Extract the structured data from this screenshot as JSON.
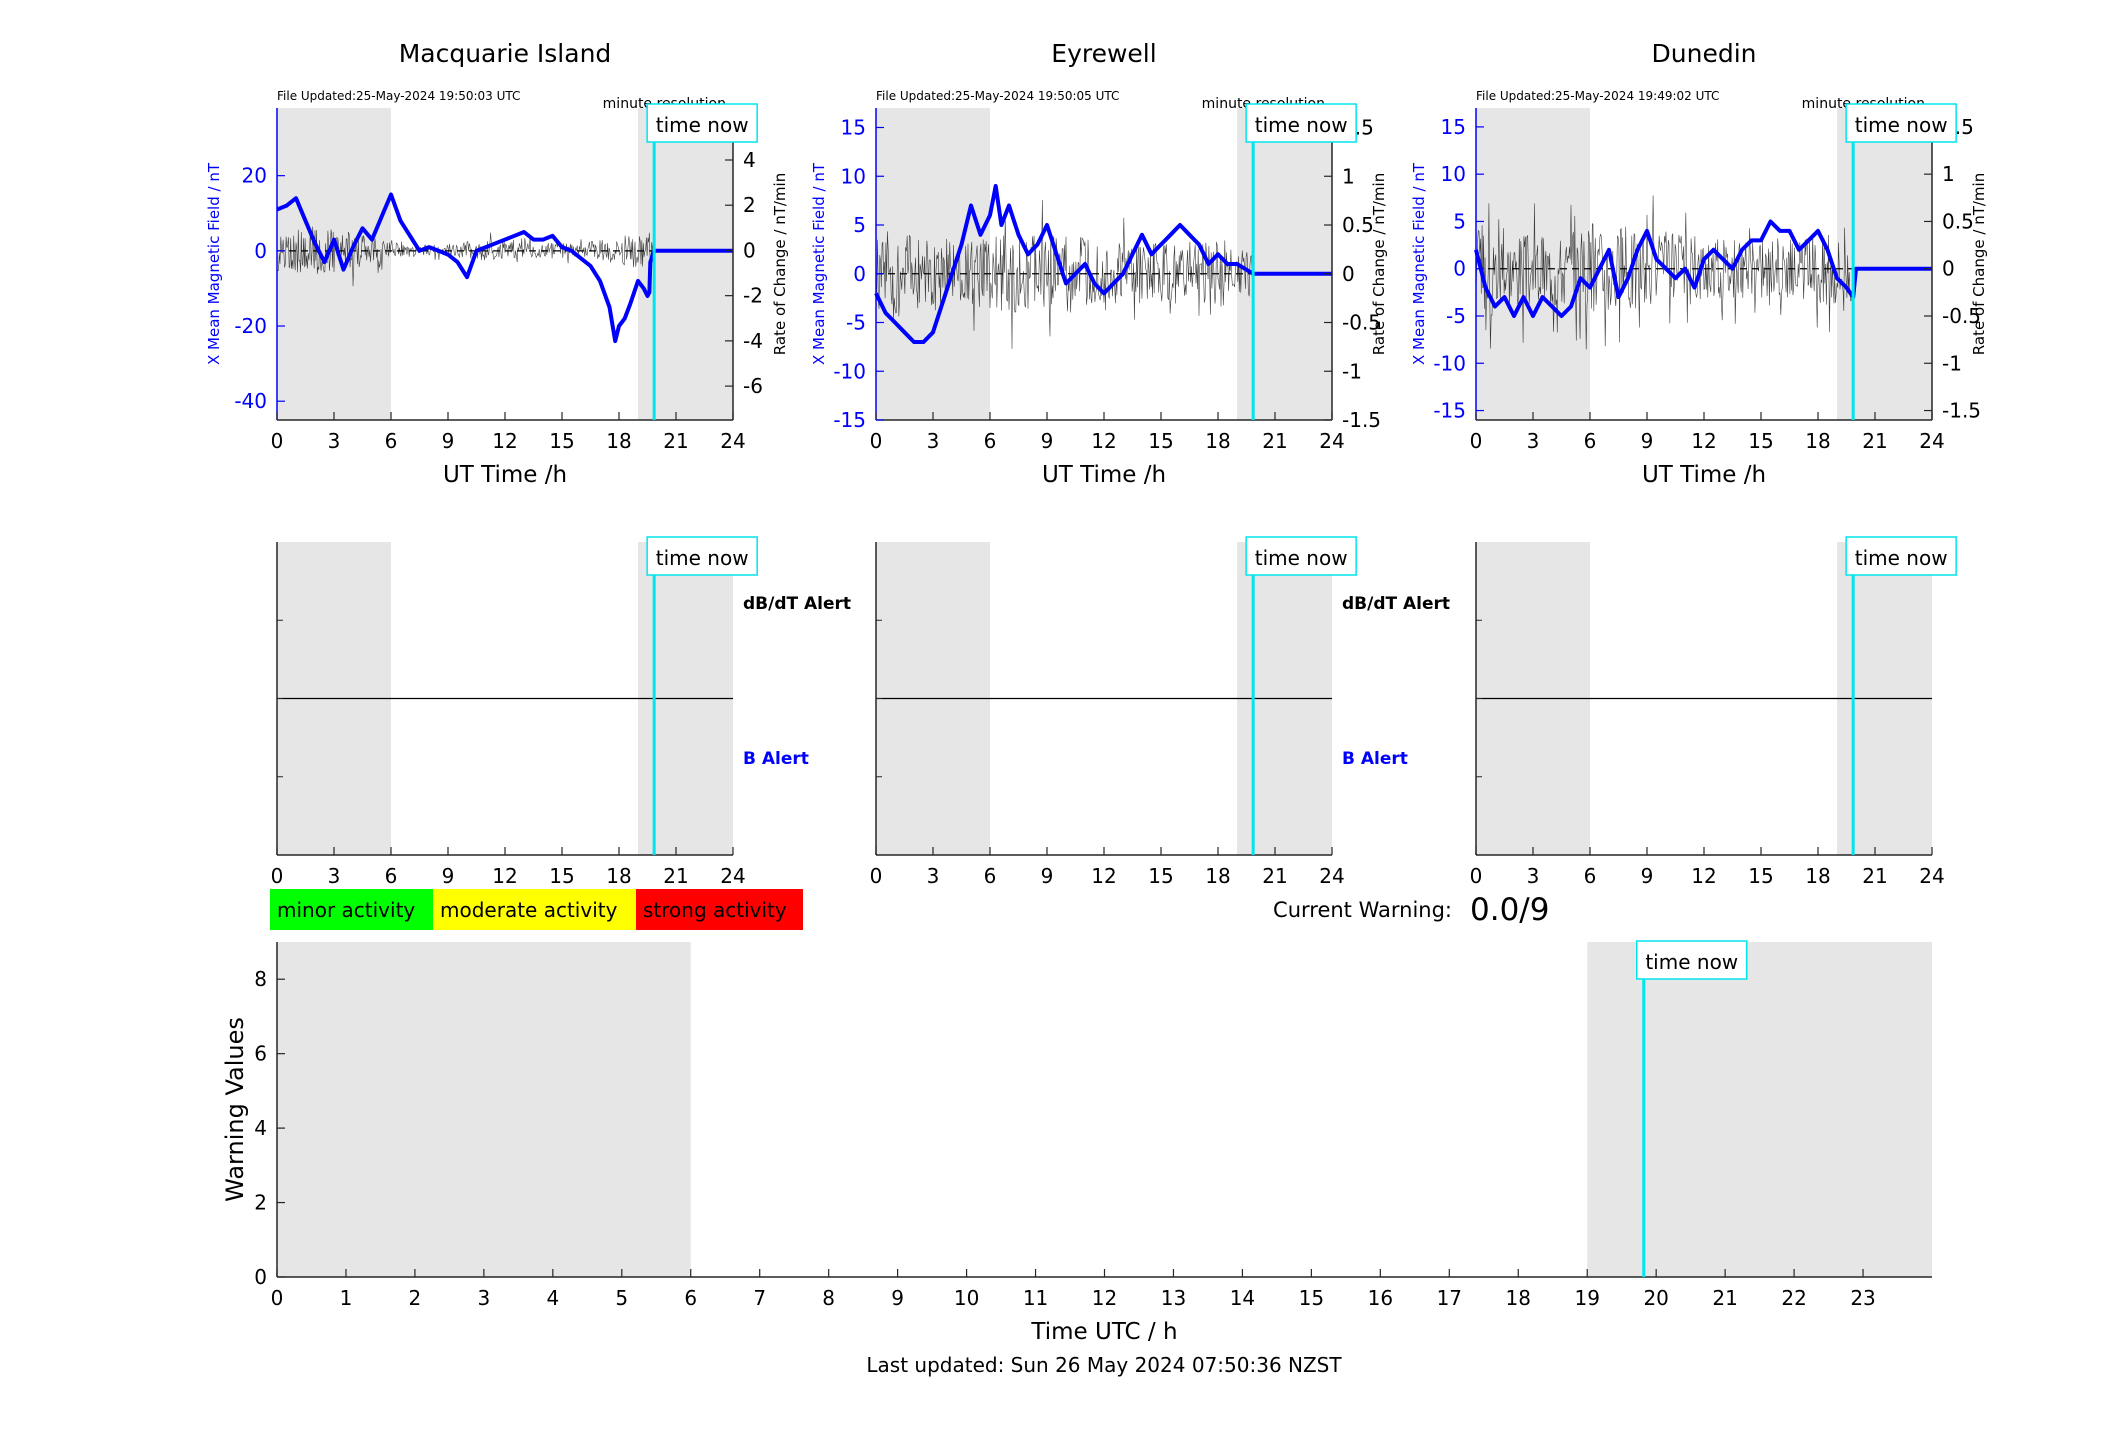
{
  "chart_data": [
    {
      "type": "line",
      "station": "Macquarie Island",
      "file_updated": "File Updated:25-May-2024 19:50:03 UTC",
      "resolution_label": "minute resolution",
      "time_now_label": "time now",
      "time_now_h": 19.85,
      "night_bands_h": [
        [
          0,
          6
        ],
        [
          19,
          24
        ]
      ],
      "xlabel": "UT Time /h",
      "xlim": [
        0,
        24
      ],
      "xticks": [
        0,
        3,
        6,
        9,
        12,
        15,
        18,
        21,
        24
      ],
      "ylabel_left": "X Mean Magnetic Field / nT",
      "ylim_left": [
        -45,
        38
      ],
      "yticks_left": [
        -40,
        -20,
        0,
        20
      ],
      "ylabel_right": "Rate of Change / nT/min",
      "ylim_right": [
        -7.5,
        6.3
      ],
      "yticks_right": [
        -6,
        -4,
        -2,
        0,
        2,
        4,
        6
      ],
      "series": [
        {
          "name": "X Mean Magnetic Field",
          "axis": "left",
          "x": [
            0,
            0.5,
            1,
            1.5,
            2,
            2.5,
            3,
            3.5,
            4,
            4.5,
            5,
            5.5,
            6,
            6.5,
            7,
            7.5,
            8,
            8.5,
            9,
            9.5,
            10,
            10.5,
            11,
            11.5,
            12,
            12.5,
            13,
            13.5,
            14,
            14.5,
            15,
            15.5,
            16,
            16.5,
            17,
            17.5,
            17.8,
            18,
            18.3,
            18.6,
            19,
            19.3,
            19.5,
            19.6,
            19.65,
            19.85,
            20,
            24
          ],
          "y": [
            11,
            12,
            14,
            8,
            2,
            -3,
            3,
            -5,
            1,
            6,
            3,
            9,
            15,
            8,
            4,
            0,
            1,
            0,
            -1,
            -3,
            -7,
            0,
            1,
            2,
            3,
            4,
            5,
            3,
            3,
            4,
            1,
            0,
            -2,
            -4,
            -8,
            -15,
            -24,
            -20,
            -18,
            -14,
            -8,
            -10,
            -12,
            -11,
            -3,
            0,
            0,
            0
          ]
        },
        {
          "name": "Rate of Change",
          "axis": "right",
          "x": [
            0,
            1,
            2,
            3,
            4,
            5,
            6,
            7,
            8,
            9,
            10,
            11,
            12,
            13,
            14,
            15,
            16,
            17,
            18,
            19,
            19.85
          ],
          "amplitude": [
            1.3,
            1.2,
            1.4,
            1.2,
            1.0,
            0.8,
            0.6,
            0.4,
            0.3,
            0.3,
            0.5,
            0.6,
            0.5,
            0.4,
            0.4,
            0.5,
            0.4,
            0.6,
            0.8,
            1.0,
            1.0
          ]
        }
      ],
      "alert_panel": {
        "xlim": [
          0,
          24
        ],
        "xticks": [
          0,
          3,
          6,
          9,
          12,
          15,
          18,
          21,
          24
        ],
        "upper_label": "dB/dT Alert",
        "lower_label": "B Alert"
      }
    },
    {
      "type": "line",
      "station": "Eyrewell",
      "file_updated": "File Updated:25-May-2024 19:50:05 UTC",
      "resolution_label": "minute resolution",
      "time_now_label": "time now",
      "time_now_h": 19.85,
      "night_bands_h": [
        [
          0,
          6
        ],
        [
          19,
          24
        ]
      ],
      "xlabel": "UT Time /h",
      "xlim": [
        0,
        24
      ],
      "xticks": [
        0,
        3,
        6,
        9,
        12,
        15,
        18,
        21,
        24
      ],
      "ylabel_left": "X Mean Magnetic Field / nT",
      "ylim_left": [
        -15,
        17
      ],
      "yticks_left": [
        -15,
        -10,
        -5,
        0,
        5,
        10,
        15
      ],
      "ylabel_right": "Rate of Change / nT/min",
      "ylim_right": [
        -1.5,
        1.7
      ],
      "yticks_right": [
        -1.5,
        -1,
        -0.5,
        0,
        0.5,
        1,
        1.5
      ],
      "series": [
        {
          "name": "X Mean Magnetic Field",
          "axis": "left",
          "x": [
            0,
            0.5,
            1,
            1.5,
            2,
            2.5,
            3,
            3.5,
            4,
            4.5,
            5,
            5.5,
            6,
            6.3,
            6.6,
            7,
            7.5,
            8,
            8.5,
            9,
            9.5,
            10,
            10.5,
            11,
            11.5,
            12,
            12.5,
            13,
            13.5,
            14,
            14.5,
            15,
            15.5,
            16,
            16.5,
            17,
            17.5,
            18,
            18.5,
            19,
            19.85,
            20,
            24
          ],
          "y": [
            -2,
            -4,
            -5,
            -6,
            -7,
            -7,
            -6,
            -3,
            0,
            3,
            7,
            4,
            6,
            9,
            5,
            7,
            4,
            2,
            3,
            5,
            2,
            -1,
            0,
            1,
            -1,
            -2,
            -1,
            0,
            2,
            4,
            2,
            3,
            4,
            5,
            4,
            3,
            1,
            2,
            1,
            1,
            0,
            0,
            0
          ]
        },
        {
          "name": "Rate of Change",
          "axis": "right",
          "x": [
            0,
            1,
            2,
            3,
            4,
            5,
            6,
            7,
            8,
            9,
            10,
            11,
            12,
            13,
            14,
            15,
            16,
            17,
            18,
            19,
            19.85
          ],
          "amplitude": [
            0.5,
            0.6,
            0.5,
            0.5,
            0.4,
            0.4,
            0.5,
            0.5,
            0.5,
            0.5,
            0.5,
            0.5,
            0.4,
            0.4,
            0.4,
            0.4,
            0.4,
            0.4,
            0.5,
            0.3,
            0.3
          ]
        }
      ],
      "alert_panel": {
        "xlim": [
          0,
          24
        ],
        "xticks": [
          0,
          3,
          6,
          9,
          12,
          15,
          18,
          21,
          24
        ],
        "upper_label": "dB/dT Alert",
        "lower_label": "B Alert"
      }
    },
    {
      "type": "line",
      "station": "Dunedin",
      "file_updated": "File Updated:25-May-2024 19:49:02 UTC",
      "resolution_label": "minute resolution",
      "time_now_label": "time now",
      "time_now_h": 19.85,
      "night_bands_h": [
        [
          0,
          6
        ],
        [
          19,
          24
        ]
      ],
      "xlabel": "UT Time /h",
      "xlim": [
        0,
        24
      ],
      "xticks": [
        0,
        3,
        6,
        9,
        12,
        15,
        18,
        21,
        24
      ],
      "ylabel_left": "X Mean Magnetic Field / nT",
      "ylim_left": [
        -16,
        17
      ],
      "yticks_left": [
        -15,
        -10,
        -5,
        0,
        5,
        10,
        15
      ],
      "ylabel_right": "Rate of Change / nT/min",
      "ylim_right": [
        -1.6,
        1.7
      ],
      "yticks_right": [
        -1.5,
        -1,
        -0.5,
        0,
        0.5,
        1,
        1.5
      ],
      "series": [
        {
          "name": "X Mean Magnetic Field",
          "axis": "left",
          "x": [
            0,
            0.5,
            1,
            1.5,
            2,
            2.5,
            3,
            3.5,
            4,
            4.5,
            5,
            5.5,
            6,
            6.5,
            7,
            7.5,
            8,
            8.5,
            9,
            9.5,
            10,
            10.5,
            11,
            11.5,
            12,
            12.5,
            13,
            13.5,
            14,
            14.5,
            15,
            15.5,
            16,
            16.5,
            17,
            17.5,
            18,
            18.5,
            19,
            19.5,
            19.85,
            20,
            24
          ],
          "y": [
            2,
            -2,
            -4,
            -3,
            -5,
            -3,
            -5,
            -3,
            -4,
            -5,
            -4,
            -1,
            -2,
            0,
            2,
            -3,
            -1,
            2,
            4,
            1,
            0,
            -1,
            0,
            -2,
            1,
            2,
            1,
            0,
            2,
            3,
            3,
            5,
            4,
            4,
            2,
            3,
            4,
            2,
            -1,
            -2,
            -3,
            0,
            0
          ]
        },
        {
          "name": "Rate of Change",
          "axis": "right",
          "x": [
            0,
            1,
            2,
            3,
            4,
            5,
            6,
            7,
            8,
            9,
            10,
            11,
            12,
            13,
            14,
            15,
            16,
            17,
            18,
            19,
            19.85
          ],
          "amplitude": [
            0.6,
            0.6,
            0.5,
            0.5,
            0.5,
            0.5,
            0.6,
            0.6,
            0.6,
            0.5,
            0.5,
            0.5,
            0.4,
            0.4,
            0.4,
            0.4,
            0.4,
            0.4,
            0.5,
            0.5,
            0.4
          ]
        }
      ],
      "alert_panel": {
        "xlim": [
          0,
          24
        ],
        "xticks": [
          0,
          3,
          6,
          9,
          12,
          15,
          18,
          21,
          24
        ],
        "upper_label": "",
        "lower_label": ""
      }
    },
    {
      "type": "bar",
      "title": "",
      "xlabel": "Time UTC / h",
      "ylabel": "Warning Values",
      "xlim": [
        0,
        24
      ],
      "xticks": [
        0,
        1,
        2,
        3,
        4,
        5,
        6,
        7,
        8,
        9,
        10,
        11,
        12,
        13,
        14,
        15,
        16,
        17,
        18,
        19,
        20,
        21,
        22,
        23
      ],
      "ylim": [
        0,
        9
      ],
      "yticks": [
        0,
        2,
        4,
        6,
        8
      ],
      "night_bands_h": [
        [
          0,
          6
        ],
        [
          19,
          24
        ]
      ],
      "time_now_h": 19.82,
      "time_now_label": "time now",
      "values": [],
      "legend": [
        {
          "label": "minor activity",
          "color": "#00ff00"
        },
        {
          "label": "moderate activity",
          "color": "#ffff00"
        },
        {
          "label": "strong activity",
          "color": "#ff0000"
        }
      ],
      "current_warning_label": "Current Warning:",
      "current_warning_value": "0.0/9",
      "last_updated": "Last updated: Sun 26 May 2024 07:50:36 NZST"
    }
  ],
  "colors": {
    "field_line": "#0000ff",
    "rate_line": "#000000",
    "time_now": "#00e5ee",
    "night_band": "#e6e6e6",
    "axis": "#262626",
    "left_axis": "#0000ff",
    "b_alert": "#0000ff"
  }
}
